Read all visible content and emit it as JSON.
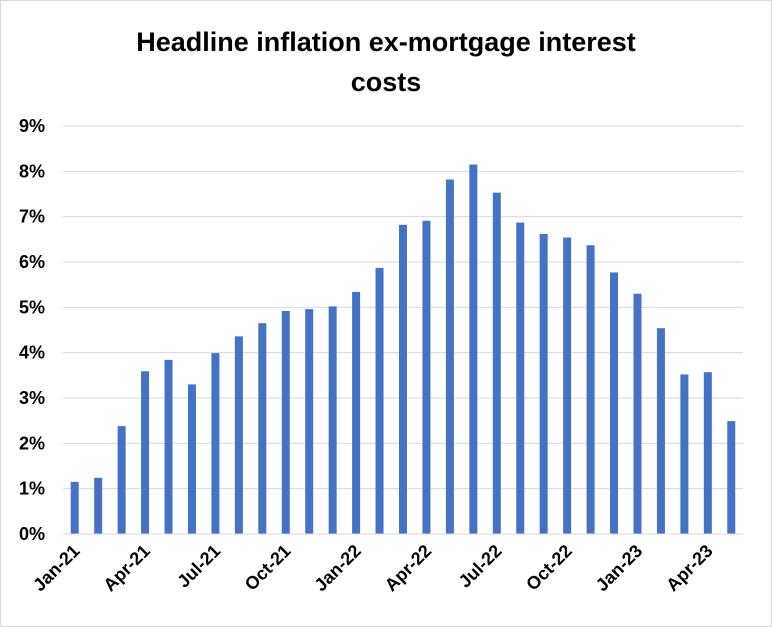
{
  "chart_data": {
    "type": "bar",
    "title_lines": [
      "Headline inflation ex-mortgage interest",
      "costs"
    ],
    "categories": [
      "Jan-21",
      "Feb-21",
      "Mar-21",
      "Apr-21",
      "May-21",
      "Jun-21",
      "Jul-21",
      "Aug-21",
      "Sep-21",
      "Oct-21",
      "Nov-21",
      "Dec-21",
      "Jan-22",
      "Feb-22",
      "Mar-22",
      "Apr-22",
      "May-22",
      "Jun-22",
      "Jul-22",
      "Aug-22",
      "Sep-22",
      "Oct-22",
      "Nov-22",
      "Dec-22",
      "Jan-23",
      "Feb-23",
      "Mar-23",
      "Apr-23",
      "May-23"
    ],
    "x_tick_labels": [
      "Jan-21",
      "Apr-21",
      "Jul-21",
      "Oct-21",
      "Jan-22",
      "Apr-22",
      "Jul-22",
      "Oct-22",
      "Jan-23",
      "Apr-23"
    ],
    "values": [
      1.15,
      1.24,
      2.38,
      3.59,
      3.84,
      3.3,
      3.99,
      4.36,
      4.65,
      4.92,
      4.96,
      5.02,
      5.34,
      5.87,
      6.82,
      6.91,
      7.82,
      8.15,
      7.53,
      6.87,
      6.62,
      6.54,
      6.37,
      5.77,
      5.3,
      4.54,
      3.52,
      3.57,
      2.49
    ],
    "y_tick_labels": [
      "0%",
      "1%",
      "2%",
      "3%",
      "4%",
      "5%",
      "6%",
      "7%",
      "8%",
      "9%"
    ],
    "ylim": [
      0,
      9
    ],
    "y_unit": "%",
    "grid": true,
    "bar_color": "#4472c4",
    "grid_color": "#d9d9d9"
  }
}
